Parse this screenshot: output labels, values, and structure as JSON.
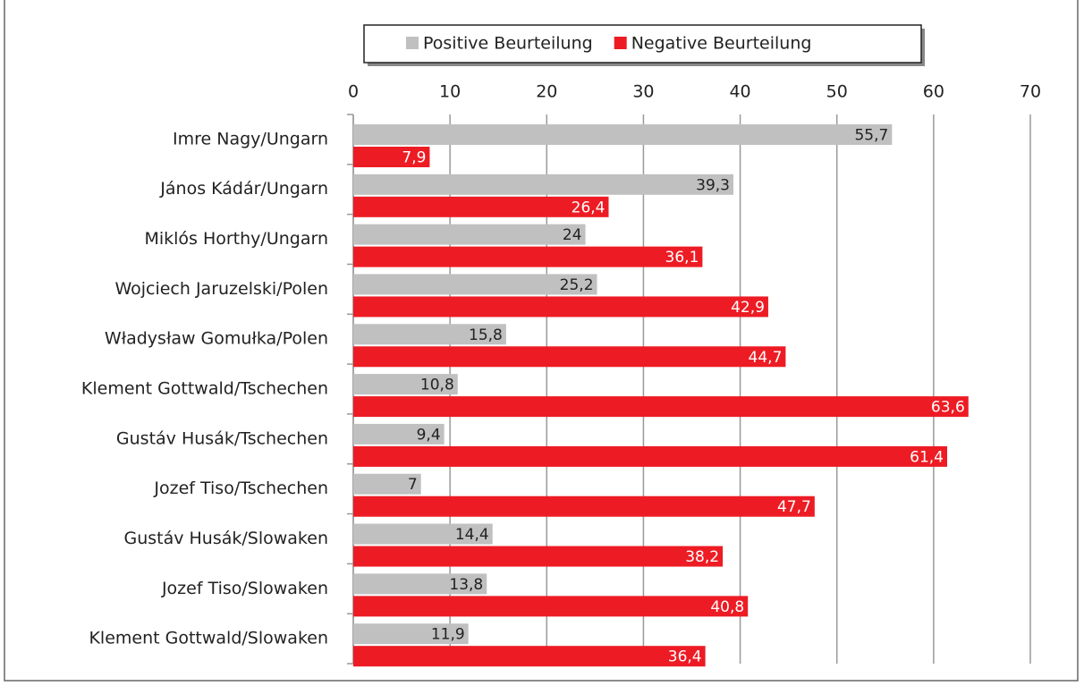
{
  "chart_data": {
    "type": "bar",
    "orientation": "horizontal",
    "categories": [
      "Imre Nagy/Ungarn",
      "János Kádár/Ungarn",
      "Miklós Horthy/Ungarn",
      "Wojciech Jaruzelski/Polen",
      "Władysław Gomułka/Polen",
      "Klement Gottwald/Tschechen",
      "Gustáv Husák/Tschechen",
      "Jozef Tiso/Tschechen",
      "Gustáv Husák/Slowaken",
      "Jozef Tiso/Slowaken",
      "Klement Gottwald/Slowaken"
    ],
    "series": [
      {
        "name": "Positive Beurteilung",
        "color": "#c0c0c0",
        "values": [
          55.7,
          39.3,
          24,
          25.2,
          15.8,
          10.8,
          9.4,
          7,
          14.4,
          13.8,
          11.9
        ],
        "value_labels": [
          "55,7",
          "39,3",
          "24",
          "25,2",
          "15,8",
          "10,8",
          "9,4",
          "7",
          "14,4",
          "13,8",
          "11,9"
        ]
      },
      {
        "name": "Negative Beurteilung",
        "color": "#ed1c24",
        "values": [
          7.9,
          26.4,
          36.1,
          42.9,
          44.7,
          63.6,
          61.4,
          47.7,
          38.2,
          40.8,
          36.4
        ],
        "value_labels": [
          "7,9",
          "26,4",
          "36,1",
          "42,9",
          "44,7",
          "63,6",
          "61,4",
          "47,7",
          "38,2",
          "40,8",
          "36,4"
        ]
      }
    ],
    "xlim": [
      0,
      70
    ],
    "xticks": [
      0,
      10,
      20,
      30,
      40,
      50,
      60,
      70
    ],
    "grid": true,
    "legend": "top"
  }
}
